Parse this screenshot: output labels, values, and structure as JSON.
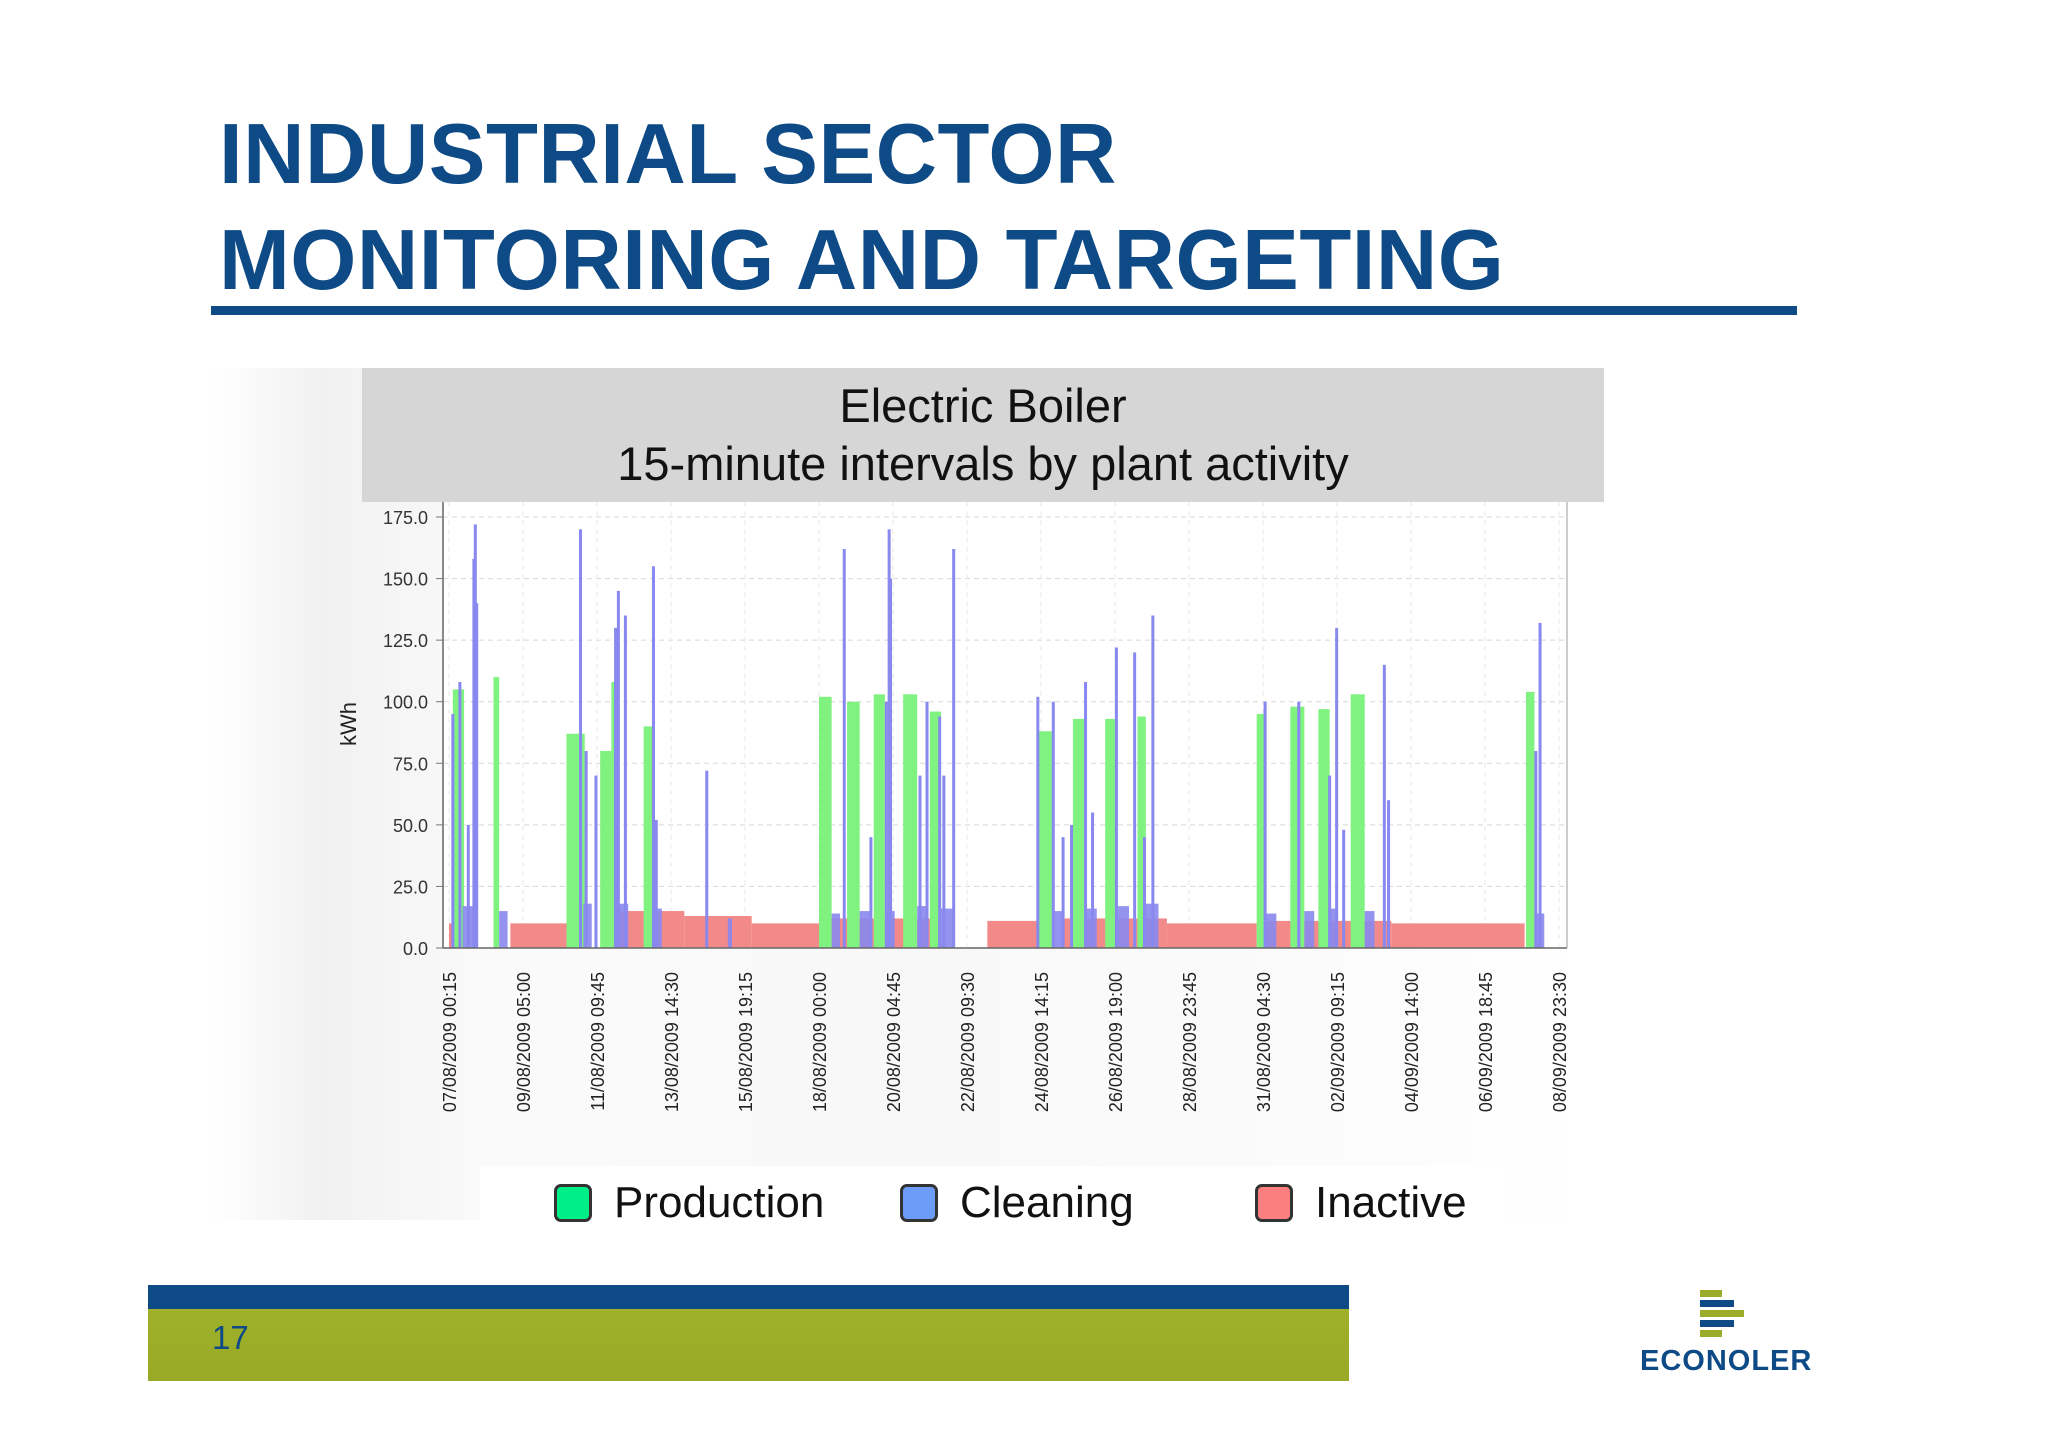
{
  "slide": {
    "title_line1": "INDUSTRIAL SECTOR",
    "title_line2": "MONITORING AND TARGETING",
    "page_number": "17",
    "logo_text": "ECONOLER",
    "colors": {
      "brand_blue": "#0d4a86",
      "brand_green": "#9aac28"
    }
  },
  "chart_data": {
    "type": "bar",
    "title": "Electric Boiler",
    "subtitle": "15-minute intervals by plant activity",
    "ylabel": "kWh",
    "xlabel": "",
    "ylim": [
      0,
      175
    ],
    "yticks": [
      "0.0",
      "25.0",
      "50.0",
      "75.0",
      "100.0",
      "125.0",
      "150.0",
      "175.0"
    ],
    "x_tick_labels": [
      "07/08/2009 00:15",
      "09/08/2009 05:00",
      "11/08/2009 09:45",
      "13/08/2009 14:30",
      "15/08/2009 19:15",
      "18/08/2009 00:00",
      "20/08/2009 04:45",
      "22/08/2009 09:30",
      "24/08/2009 14:15",
      "26/08/2009 19:00",
      "28/08/2009 23:45",
      "31/08/2009 04:30",
      "02/09/2009 09:15",
      "04/09/2009 14:00",
      "06/09/2009 18:45",
      "08/09/2009 23:30"
    ],
    "x_start": "07/08/2009 00:15",
    "x_end": "08/09/2009 23:30",
    "grid": true,
    "legend_position": "bottom",
    "series": [
      {
        "name": "Production",
        "color": "#7ff27f",
        "legend_color": "#00ee88",
        "intervals": [
          {
            "start": "07/08/2009 03:00",
            "end": "07/08/2009 11:00",
            "kwh": 105
          },
          {
            "start": "08/08/2009 08:00",
            "end": "08/08/2009 12:00",
            "kwh": 110
          },
          {
            "start": "10/08/2009 12:00",
            "end": "11/08/2009 01:00",
            "kwh": 87
          },
          {
            "start": "11/08/2009 12:00",
            "end": "11/08/2009 20:00",
            "kwh": 80
          },
          {
            "start": "11/08/2009 20:00",
            "end": "12/08/2009 00:00",
            "kwh": 108
          },
          {
            "start": "12/08/2009 19:00",
            "end": "13/08/2009 03:00",
            "kwh": 90
          },
          {
            "start": "18/08/2009 00:00",
            "end": "18/08/2009 09:00",
            "kwh": 102
          },
          {
            "start": "18/08/2009 20:00",
            "end": "19/08/2009 05:00",
            "kwh": 100
          },
          {
            "start": "19/08/2009 15:00",
            "end": "19/08/2009 23:00",
            "kwh": 103
          },
          {
            "start": "20/08/2009 12:00",
            "end": "20/08/2009 22:00",
            "kwh": 103
          },
          {
            "start": "21/08/2009 07:00",
            "end": "21/08/2009 15:00",
            "kwh": 96
          },
          {
            "start": "24/08/2009 12:00",
            "end": "24/08/2009 22:00",
            "kwh": 88
          },
          {
            "start": "25/08/2009 13:00",
            "end": "25/08/2009 22:00",
            "kwh": 93
          },
          {
            "start": "26/08/2009 12:00",
            "end": "26/08/2009 21:00",
            "kwh": 93
          },
          {
            "start": "27/08/2009 11:00",
            "end": "27/08/2009 17:00",
            "kwh": 94
          },
          {
            "start": "31/08/2009 00:00",
            "end": "31/08/2009 07:00",
            "kwh": 95
          },
          {
            "start": "01/09/2009 00:00",
            "end": "01/09/2009 10:00",
            "kwh": 98
          },
          {
            "start": "01/09/2009 20:00",
            "end": "02/09/2009 04:00",
            "kwh": 97
          },
          {
            "start": "02/09/2009 19:00",
            "end": "03/09/2009 05:00",
            "kwh": 103
          },
          {
            "start": "08/09/2009 00:00",
            "end": "08/09/2009 06:00",
            "kwh": 104
          }
        ]
      },
      {
        "name": "Cleaning",
        "color": "#8888ee",
        "legend_color": "#6b9cf7",
        "baseline_intervals": [
          {
            "start": "07/08/2009 10:00",
            "end": "07/08/2009 20:00",
            "kwh": 17
          },
          {
            "start": "08/08/2009 12:00",
            "end": "08/08/2009 18:00",
            "kwh": 15
          },
          {
            "start": "11/08/2009 00:00",
            "end": "11/08/2009 06:00",
            "kwh": 18
          },
          {
            "start": "12/08/2009 00:00",
            "end": "12/08/2009 08:00",
            "kwh": 18
          },
          {
            "start": "13/08/2009 03:00",
            "end": "13/08/2009 08:00",
            "kwh": 16
          },
          {
            "start": "15/08/2009 07:00",
            "end": "15/08/2009 10:00",
            "kwh": 12
          },
          {
            "start": "18/08/2009 09:00",
            "end": "18/08/2009 15:00",
            "kwh": 14
          },
          {
            "start": "19/08/2009 05:00",
            "end": "19/08/2009 12:00",
            "kwh": 15
          },
          {
            "start": "20/08/2009 00:00",
            "end": "20/08/2009 06:00",
            "kwh": 15
          },
          {
            "start": "20/08/2009 22:00",
            "end": "21/08/2009 06:00",
            "kwh": 17
          },
          {
            "start": "21/08/2009 15:00",
            "end": "22/08/2009 00:00",
            "kwh": 16
          },
          {
            "start": "24/08/2009 22:00",
            "end": "25/08/2009 06:00",
            "kwh": 15
          },
          {
            "start": "25/08/2009 22:00",
            "end": "26/08/2009 06:00",
            "kwh": 16
          },
          {
            "start": "26/08/2009 21:00",
            "end": "27/08/2009 05:00",
            "kwh": 17
          },
          {
            "start": "27/08/2009 17:00",
            "end": "28/08/2009 02:00",
            "kwh": 18
          },
          {
            "start": "31/08/2009 07:00",
            "end": "31/08/2009 14:00",
            "kwh": 14
          },
          {
            "start": "01/09/2009 10:00",
            "end": "01/09/2009 17:00",
            "kwh": 15
          },
          {
            "start": "02/09/2009 04:00",
            "end": "02/09/2009 10:00",
            "kwh": 16
          },
          {
            "start": "03/09/2009 05:00",
            "end": "03/09/2009 12:00",
            "kwh": 15
          },
          {
            "start": "08/09/2009 06:00",
            "end": "08/09/2009 13:00",
            "kwh": 14
          }
        ],
        "spikes": [
          {
            "time": "07/08/2009 03:00",
            "kwh": 95
          },
          {
            "time": "07/08/2009 08:00",
            "kwh": 108
          },
          {
            "time": "07/08/2009 14:00",
            "kwh": 50
          },
          {
            "time": "07/08/2009 18:00",
            "kwh": 158
          },
          {
            "time": "07/08/2009 19:00",
            "kwh": 172
          },
          {
            "time": "07/08/2009 20:00",
            "kwh": 140
          },
          {
            "time": "10/08/2009 22:00",
            "kwh": 170
          },
          {
            "time": "11/08/2009 02:00",
            "kwh": 80
          },
          {
            "time": "11/08/2009 09:00",
            "kwh": 70
          },
          {
            "time": "11/08/2009 23:00",
            "kwh": 130
          },
          {
            "time": "12/08/2009 01:00",
            "kwh": 145
          },
          {
            "time": "12/08/2009 06:00",
            "kwh": 135
          },
          {
            "time": "13/08/2009 02:00",
            "kwh": 155
          },
          {
            "time": "13/08/2009 04:00",
            "kwh": 52
          },
          {
            "time": "14/08/2009 16:00",
            "kwh": 72
          },
          {
            "time": "18/08/2009 18:00",
            "kwh": 162
          },
          {
            "time": "19/08/2009 13:00",
            "kwh": 45
          },
          {
            "time": "20/08/2009 00:00",
            "kwh": 100
          },
          {
            "time": "20/08/2009 02:00",
            "kwh": 170
          },
          {
            "time": "20/08/2009 03:00",
            "kwh": 150
          },
          {
            "time": "21/08/2009 00:00",
            "kwh": 70
          },
          {
            "time": "21/08/2009 05:00",
            "kwh": 100
          },
          {
            "time": "21/08/2009 14:00",
            "kwh": 94
          },
          {
            "time": "21/08/2009 17:00",
            "kwh": 70
          },
          {
            "time": "22/08/2009 00:00",
            "kwh": 162
          },
          {
            "time": "24/08/2009 12:00",
            "kwh": 102
          },
          {
            "time": "24/08/2009 23:00",
            "kwh": 100
          },
          {
            "time": "25/08/2009 06:00",
            "kwh": 45
          },
          {
            "time": "25/08/2009 12:00",
            "kwh": 50
          },
          {
            "time": "25/08/2009 22:00",
            "kwh": 108
          },
          {
            "time": "26/08/2009 03:00",
            "kwh": 55
          },
          {
            "time": "26/08/2009 20:00",
            "kwh": 122
          },
          {
            "time": "27/08/2009 09:00",
            "kwh": 120
          },
          {
            "time": "27/08/2009 16:00",
            "kwh": 45
          },
          {
            "time": "27/08/2009 22:00",
            "kwh": 135
          },
          {
            "time": "31/08/2009 06:00",
            "kwh": 100
          },
          {
            "time": "01/09/2009 06:00",
            "kwh": 100
          },
          {
            "time": "02/09/2009 04:00",
            "kwh": 70
          },
          {
            "time": "02/09/2009 09:00",
            "kwh": 130
          },
          {
            "time": "02/09/2009 14:00",
            "kwh": 48
          },
          {
            "time": "03/09/2009 19:00",
            "kwh": 115
          },
          {
            "time": "03/09/2009 22:00",
            "kwh": 60
          },
          {
            "time": "08/09/2009 07:00",
            "kwh": 80
          },
          {
            "time": "08/09/2009 10:00",
            "kwh": 132
          }
        ]
      },
      {
        "name": "Inactive",
        "color": "#f28a8a",
        "legend_color": "#fb7f7f",
        "intervals": [
          {
            "start": "07/08/2009 00:15",
            "end": "07/08/2009 10:00",
            "kwh": 10
          },
          {
            "start": "08/08/2009 20:00",
            "end": "10/08/2009 12:00",
            "kwh": 10
          },
          {
            "start": "12/08/2009 00:00",
            "end": "14/08/2009 00:00",
            "kwh": 15
          },
          {
            "start": "14/08/2009 00:00",
            "end": "16/08/2009 00:00",
            "kwh": 13
          },
          {
            "start": "16/08/2009 00:00",
            "end": "18/08/2009 00:00",
            "kwh": 10
          },
          {
            "start": "18/08/2009 09:00",
            "end": "21/08/2009 15:00",
            "kwh": 12
          },
          {
            "start": "23/08/2009 00:00",
            "end": "24/08/2009 12:00",
            "kwh": 11
          },
          {
            "start": "25/08/2009 06:00",
            "end": "28/08/2009 08:00",
            "kwh": 12
          },
          {
            "start": "28/08/2009 08:00",
            "end": "31/08/2009 00:00",
            "kwh": 10
          },
          {
            "start": "31/08/2009 07:00",
            "end": "04/09/2009 00:00",
            "kwh": 11
          },
          {
            "start": "04/09/2009 00:00",
            "end": "07/09/2009 23:00",
            "kwh": 10
          }
        ]
      }
    ]
  }
}
